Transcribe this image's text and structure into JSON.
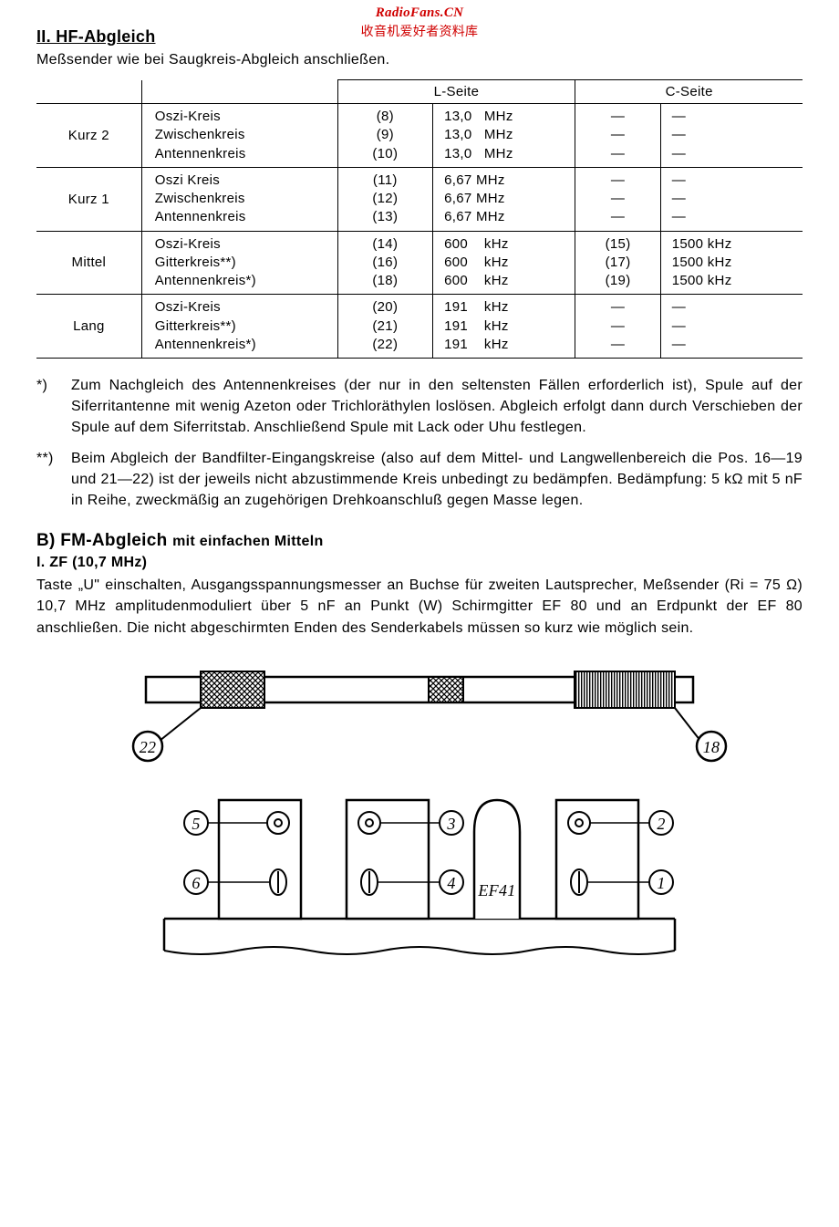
{
  "watermark": {
    "site": "RadioFans.CN",
    "cn": "收音机爱好者资料库"
  },
  "sec2": {
    "title": "II. HF-Abgleich",
    "intro": "Meßsender wie bei Saugkreis-Abgleich anschließen.",
    "table": {
      "header": {
        "l": "L-Seite",
        "c": "C-Seite"
      },
      "rows": [
        {
          "band": "Kurz 2",
          "kreis": [
            "Oszi-Kreis",
            "Zwischenkreis",
            "Antennenkreis"
          ],
          "lnum": [
            "(8)",
            "(9)",
            "(10)"
          ],
          "lfreq": [
            "13,0   MHz",
            "13,0   MHz",
            "13,0   MHz"
          ],
          "cnum": [
            "—",
            "—",
            "—"
          ],
          "cfreq": [
            "—",
            "—",
            "—"
          ]
        },
        {
          "band": "Kurz 1",
          "kreis": [
            "Oszi Kreis",
            "Zwischenkreis",
            "Antennenkreis"
          ],
          "lnum": [
            "(11)",
            "(12)",
            "(13)"
          ],
          "lfreq": [
            "6,67 MHz",
            "6,67 MHz",
            "6,67 MHz"
          ],
          "cnum": [
            "—",
            "—",
            "—"
          ],
          "cfreq": [
            "—",
            "—",
            "—"
          ]
        },
        {
          "band": "Mittel",
          "kreis": [
            "Oszi-Kreis",
            "Gitterkreis**)",
            "Antennenkreis*)"
          ],
          "lnum": [
            "(14)",
            "(16)",
            "(18)"
          ],
          "lfreq": [
            "600    kHz",
            "600    kHz",
            "600    kHz"
          ],
          "cnum": [
            "(15)",
            "(17)",
            "(19)"
          ],
          "cfreq": [
            "1500 kHz",
            "1500 kHz",
            "1500 kHz"
          ]
        },
        {
          "band": "Lang",
          "kreis": [
            "Oszi-Kreis",
            "Gitterkreis**)",
            "Antennenkreis*)"
          ],
          "lnum": [
            "(20)",
            "(21)",
            "(22)"
          ],
          "lfreq": [
            "191    kHz",
            "191    kHz",
            "191    kHz"
          ],
          "cnum": [
            "—",
            "—",
            "—"
          ],
          "cfreq": [
            "—",
            "—",
            "—"
          ]
        }
      ]
    },
    "footnotes": {
      "a_mark": "*)",
      "a_text": "Zum Nachgleich des Antennenkreises (der nur in den seltensten Fällen erforderlich ist), Spule auf der Siferritantenne mit wenig Azeton oder Trichloräthylen loslösen. Abgleich erfolgt dann durch Verschieben der Spule auf dem Siferritstab. Anschließend Spule mit Lack oder Uhu festlegen.",
      "b_mark": "**)",
      "b_text": "Beim Abgleich der Bandfilter-Eingangskreise (also auf dem Mittel- und Langwellenbereich die Pos. 16—19 und 21—22) ist der jeweils nicht abzustimmende Kreis unbedingt zu bedämpfen. Bedämpfung: 5 kΩ mit 5 nF in Reihe, zweckmäßig an zugehörigen Drehkoanschluß gegen Masse legen."
    }
  },
  "secB": {
    "title_main": "B) FM-Abgleich",
    "title_sub": "mit einfachen Mitteln",
    "zf_title": "I. ZF (10,7 MHz)",
    "body": "Taste „U\" einschalten, Ausgangsspannungsmesser an Buchse für zweiten Lautsprecher, Meßsender (Ri = 75 Ω) 10,7 MHz amplitudenmoduliert über 5 nF an Punkt (W) Schirmgitter EF 80 und an Erdpunkt der EF 80 anschließen. Die nicht abgeschirmten Enden des Senderkabels müssen so kurz wie möglich sein."
  },
  "diagram": {
    "ferrite": {
      "left_label": "22",
      "right_label": "18"
    },
    "bottom": {
      "labels": {
        "l5": "5",
        "l6": "6",
        "l3": "3",
        "l4": "4",
        "l2": "2",
        "l1": "1",
        "tube": "EF41"
      }
    },
    "style": {
      "stroke": "#000000",
      "stroke_width_main": 2.5,
      "stroke_width_thin": 2,
      "fill_bg": "#ffffff",
      "hatch_color": "#000000",
      "font_family": "Times New Roman, serif",
      "font_style": "italic",
      "label_fontsize": 20
    }
  }
}
